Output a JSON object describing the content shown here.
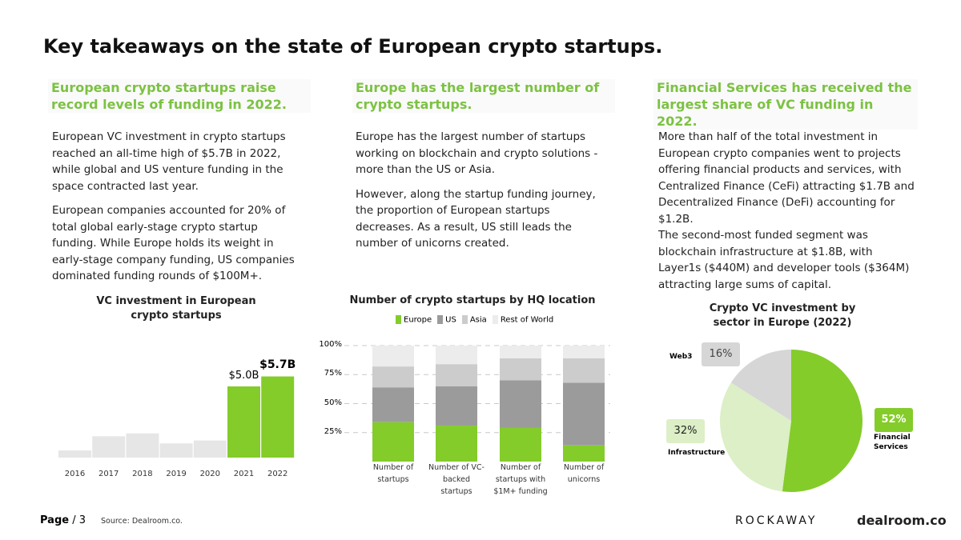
{
  "title": "Key takeaways on the state of European crypto startups.",
  "columns": [
    {
      "heading": "European crypto startups raise record levels of funding in 2022.",
      "paragraphs": [
        "European VC investment in crypto startups reached an all-time high of  $5.7B in 2022, while global and US venture funding in the space contracted last year.",
        "European companies accounted for 20% of total global early-stage crypto startup funding. While Europe holds its weight in early-stage company funding, US companies dominated funding rounds of $100M+."
      ]
    },
    {
      "heading": "Europe has the largest number of crypto startups.",
      "paragraphs": [
        "Europe has the largest number of startups working on blockchain and crypto solutions - more than the US or Asia.",
        "However, along the startup funding journey, the proportion of European startups decreases. As a result, US still leads the number of unicorns created."
      ]
    },
    {
      "heading": "Financial Services has received the largest share of VC funding in 2022.",
      "paragraphs": [
        "More than half of the total investment in European crypto companies went to projects offering financial products and services, with Centralized Finance (CeFi) attracting $1.7B and Decentralized Finance (DeFi) accounting for $1.2B.",
        "The second-most funded segment was blockchain infrastructure at $1.8B, with Layer1s ($440M) and developer tools ($364M) attracting large sums of capital."
      ]
    }
  ],
  "chart_data": [
    {
      "type": "bar",
      "title": "VC investment in European crypto startups",
      "categories": [
        "2016",
        "2017",
        "2018",
        "2019",
        "2020",
        "2021",
        "2022"
      ],
      "values": [
        0.5,
        1.5,
        1.7,
        1.0,
        1.2,
        5.0,
        5.7
      ],
      "value_labels": [
        null,
        null,
        null,
        null,
        null,
        "$5.0B",
        "$5.7B"
      ],
      "colors": [
        "#e6e6e6",
        "#e6e6e6",
        "#e6e6e6",
        "#e6e6e6",
        "#e6e6e6",
        "#84cc2a",
        "#84cc2a"
      ]
    },
    {
      "type": "stacked_bar",
      "title": "Number of crypto startups by HQ location",
      "categories": [
        "Number of startups",
        "Number of VC-backed startups",
        "Number of startups with $1M+ funding",
        "Number of unicorns"
      ],
      "series": [
        {
          "name": "Europe",
          "color": "#84cc2a",
          "values": [
            34,
            31,
            29,
            14
          ]
        },
        {
          "name": "US",
          "color": "#9b9b9b",
          "values": [
            30,
            34,
            41,
            54
          ]
        },
        {
          "name": "Asia",
          "color": "#cccccc",
          "values": [
            18,
            19,
            19,
            21
          ]
        },
        {
          "name": "Rest of World",
          "color": "#ececec",
          "values": [
            18,
            16,
            11,
            11
          ]
        }
      ],
      "ylim": [
        0,
        100
      ],
      "yticks": [
        {
          "value": 25,
          "label": "25%"
        },
        {
          "value": 50,
          "label": "50%"
        },
        {
          "value": 75,
          "label": "75%"
        },
        {
          "value": 100,
          "label": "100%"
        }
      ],
      "grid": true
    },
    {
      "type": "pie",
      "title": "Crypto VC investment by sector in Europe (2022)",
      "categories": [
        "Financial Services",
        "Infrastructure",
        "Web3"
      ],
      "values": [
        52,
        32,
        16
      ],
      "value_labels": [
        "52%",
        "32%",
        "16%"
      ],
      "colors": [
        "#84cc2a",
        "#dcefc6",
        "#d6d6d6"
      ]
    }
  ],
  "footer": {
    "page": "Page",
    "page_number": "/ 3",
    "source": "Source: Dealroom.co.",
    "logos": [
      "ROCKAWAY",
      "dealroom.co"
    ]
  }
}
